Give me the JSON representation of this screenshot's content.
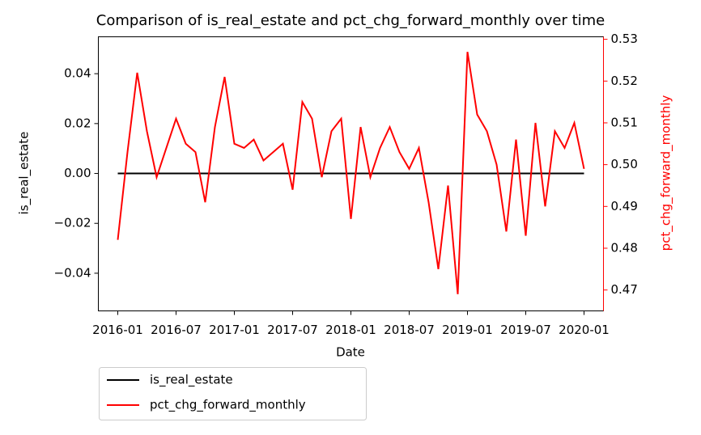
{
  "chart_data": {
    "type": "line",
    "title": "Comparison of is_real_estate and pct_chg_forward_monthly over time",
    "x_label": "Date",
    "y_label": "is_real_estate",
    "y2_label": "pct_chg_forward_monthly",
    "x": [
      "2016-01",
      "2016-02",
      "2016-03",
      "2016-04",
      "2016-05",
      "2016-06",
      "2016-07",
      "2016-08",
      "2016-09",
      "2016-10",
      "2016-11",
      "2016-12",
      "2017-01",
      "2017-02",
      "2017-03",
      "2017-04",
      "2017-05",
      "2017-06",
      "2017-07",
      "2017-08",
      "2017-09",
      "2017-10",
      "2017-11",
      "2017-12",
      "2018-01",
      "2018-02",
      "2018-03",
      "2018-04",
      "2018-05",
      "2018-06",
      "2018-07",
      "2018-08",
      "2018-09",
      "2018-10",
      "2018-11",
      "2018-12",
      "2019-01",
      "2019-02",
      "2019-03",
      "2019-04",
      "2019-05",
      "2019-06",
      "2019-07",
      "2019-08",
      "2019-09",
      "2019-10",
      "2019-11",
      "2019-12",
      "2020-01"
    ],
    "xlim": [
      "2015-11",
      "2020-03"
    ],
    "xticks": [
      "2016-01",
      "2016-07",
      "2017-01",
      "2017-07",
      "2018-01",
      "2018-07",
      "2019-01",
      "2019-07",
      "2020-01"
    ],
    "ylim": [
      -0.0551,
      0.0548
    ],
    "yticks": [
      {
        "value": -0.04,
        "label": "−0.04"
      },
      {
        "value": -0.02,
        "label": "−0.02"
      },
      {
        "value": 0,
        "label": "0.00"
      },
      0.02,
      0.04
    ],
    "y2lim": [
      0.465,
      0.5306
    ],
    "y2ticks": [
      0.47,
      0.48,
      0.49,
      {
        "value": 0.5,
        "label": "0.50"
      },
      0.51,
      0.52,
      0.53
    ],
    "y2_color": "#ff0000",
    "legend": "below",
    "series": [
      {
        "name": "is_real_estate",
        "color": "#000000",
        "axis": "y",
        "values": [
          0,
          0,
          0,
          0,
          0,
          0,
          0,
          0,
          0,
          0,
          0,
          0,
          0,
          0,
          0,
          0,
          0,
          0,
          0,
          0,
          0,
          0,
          0,
          0,
          0,
          0,
          0,
          0,
          0,
          0,
          0,
          0,
          0,
          0,
          0,
          0,
          0,
          0,
          0,
          0,
          0,
          0,
          0,
          0,
          0,
          0,
          0,
          0,
          0
        ]
      },
      {
        "name": "pct_chg_forward_monthly",
        "color": "#ff0000",
        "axis": "y2",
        "values": [
          0.482,
          0.503,
          0.522,
          0.508,
          0.497,
          0.504,
          0.511,
          0.505,
          0.503,
          0.491,
          0.509,
          0.521,
          0.505,
          0.504,
          0.506,
          0.501,
          0.503,
          0.505,
          0.494,
          0.515,
          0.511,
          0.497,
          0.508,
          0.511,
          0.487,
          0.509,
          0.497,
          0.504,
          0.509,
          0.503,
          0.499,
          0.504,
          0.491,
          0.475,
          0.495,
          0.469,
          0.527,
          0.512,
          0.508,
          0.5,
          0.484,
          0.506,
          0.483,
          0.51,
          0.49,
          0.508,
          0.504,
          0.51,
          0.499
        ]
      }
    ]
  }
}
